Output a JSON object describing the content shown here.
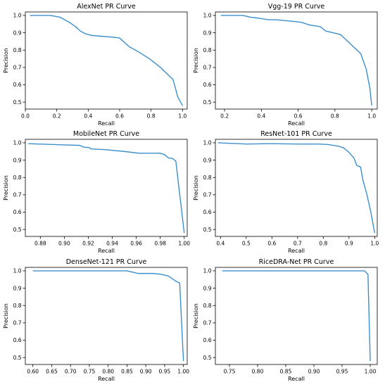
{
  "chart_data": [
    {
      "type": "line",
      "title": "AlexNet PR Curve",
      "xlabel": "Recall",
      "ylabel": "Precision",
      "xlim": [
        0.0,
        1.03
      ],
      "ylim": [
        0.46,
        1.02
      ],
      "xticks": [
        0.0,
        0.2,
        0.4,
        0.6,
        0.8,
        1.0
      ],
      "xtick_labels": [
        "0.0",
        "0.2",
        "0.4",
        "0.6",
        "0.8",
        "1.0"
      ],
      "yticks": [
        0.5,
        0.6,
        0.7,
        0.8,
        0.9,
        1.0
      ],
      "ytick_labels": [
        "0.5",
        "0.6",
        "0.7",
        "0.8",
        "0.9",
        "1.0"
      ],
      "grid": false,
      "color": "#3b8fcd",
      "x": [
        0.03,
        0.16,
        0.22,
        0.28,
        0.32,
        0.35,
        0.38,
        0.42,
        0.48,
        0.55,
        0.6,
        0.66,
        0.72,
        0.79,
        0.86,
        0.94,
        0.97,
        1.0
      ],
      "y": [
        1.0,
        1.0,
        0.99,
        0.96,
        0.935,
        0.91,
        0.895,
        0.885,
        0.88,
        0.875,
        0.87,
        0.82,
        0.79,
        0.75,
        0.7,
        0.63,
        0.53,
        0.48
      ]
    },
    {
      "type": "line",
      "title": "Vgg-19 PR Curve",
      "xlabel": "Recall",
      "ylabel": "Precision",
      "xlim": [
        0.15,
        1.03
      ],
      "ylim": [
        0.46,
        1.02
      ],
      "xticks": [
        0.2,
        0.4,
        0.6,
        0.8,
        1.0
      ],
      "xtick_labels": [
        "0.2",
        "0.4",
        "0.6",
        "0.8",
        "1.0"
      ],
      "yticks": [
        0.5,
        0.6,
        0.7,
        0.8,
        0.9,
        1.0
      ],
      "ytick_labels": [
        "0.5",
        "0.6",
        "0.7",
        "0.8",
        "0.9",
        "1.0"
      ],
      "grid": false,
      "color": "#3b8fcd",
      "x": [
        0.18,
        0.3,
        0.34,
        0.38,
        0.44,
        0.48,
        0.53,
        0.58,
        0.62,
        0.66,
        0.72,
        0.75,
        0.83,
        0.88,
        0.94,
        0.97,
        0.99,
        1.0
      ],
      "y": [
        1.0,
        1.0,
        0.99,
        0.985,
        0.975,
        0.975,
        0.97,
        0.965,
        0.96,
        0.945,
        0.935,
        0.91,
        0.89,
        0.84,
        0.78,
        0.69,
        0.58,
        0.48
      ]
    },
    {
      "type": "line",
      "title": "MobileNet PR Curve",
      "xlabel": "Recall",
      "ylabel": "Precision",
      "xlim": [
        0.8675,
        1.0025
      ],
      "ylim": [
        0.46,
        1.02
      ],
      "xticks": [
        0.88,
        0.9,
        0.92,
        0.94,
        0.96,
        0.98,
        1.0
      ],
      "xtick_labels": [
        "0.88",
        "0.90",
        "0.92",
        "0.94",
        "0.96",
        "0.98",
        "1.00"
      ],
      "yticks": [
        0.5,
        0.6,
        0.7,
        0.8,
        0.9,
        1.0
      ],
      "ytick_labels": [
        "0.5",
        "0.6",
        "0.7",
        "0.8",
        "0.9",
        "1.0"
      ],
      "grid": false,
      "color": "#3b8fcd",
      "x": [
        0.87,
        0.9,
        0.913,
        0.916,
        0.921,
        0.922,
        0.935,
        0.95,
        0.962,
        0.98,
        0.984,
        0.987,
        0.99,
        0.993,
        1.0
      ],
      "y": [
        0.995,
        0.988,
        0.985,
        0.975,
        0.972,
        0.965,
        0.96,
        0.95,
        0.94,
        0.94,
        0.93,
        0.912,
        0.91,
        0.895,
        0.48
      ]
    },
    {
      "type": "line",
      "title": "ResNet-101 PR Curve",
      "xlabel": "Recall",
      "ylabel": "Precision",
      "xlim": [
        0.38,
        1.01
      ],
      "ylim": [
        0.46,
        1.02
      ],
      "xticks": [
        0.4,
        0.5,
        0.6,
        0.7,
        0.8,
        0.9,
        1.0
      ],
      "xtick_labels": [
        "0.4",
        "0.5",
        "0.6",
        "0.7",
        "0.8",
        "0.9",
        "1.0"
      ],
      "yticks": [
        0.5,
        0.6,
        0.7,
        0.8,
        0.9,
        1.0
      ],
      "ytick_labels": [
        "0.5",
        "0.6",
        "0.7",
        "0.8",
        "0.9",
        "1.0"
      ],
      "grid": false,
      "color": "#3b8fcd",
      "x": [
        0.39,
        0.5,
        0.6,
        0.7,
        0.78,
        0.82,
        0.86,
        0.88,
        0.9,
        0.92,
        0.93,
        0.945,
        0.955,
        0.97,
        0.985,
        1.0
      ],
      "y": [
        1.0,
        0.993,
        0.995,
        0.993,
        0.993,
        0.99,
        0.98,
        0.97,
        0.945,
        0.91,
        0.87,
        0.86,
        0.78,
        0.7,
        0.6,
        0.48
      ]
    },
    {
      "type": "line",
      "title": "DenseNet-121 PR Curve",
      "xlabel": "Recall",
      "ylabel": "Precision",
      "xlim": [
        0.58,
        1.01
      ],
      "ylim": [
        0.46,
        1.02
      ],
      "xticks": [
        0.6,
        0.65,
        0.7,
        0.75,
        0.8,
        0.85,
        0.9,
        0.95,
        1.0
      ],
      "xtick_labels": [
        "0.60",
        "0.65",
        "0.70",
        "0.75",
        "0.80",
        "0.85",
        "0.90",
        "0.95",
        "1.00"
      ],
      "yticks": [
        0.5,
        0.6,
        0.7,
        0.8,
        0.9,
        1.0
      ],
      "ytick_labels": [
        "0.5",
        "0.6",
        "0.7",
        "0.8",
        "0.9",
        "1.0"
      ],
      "grid": false,
      "color": "#3b8fcd",
      "x": [
        0.6,
        0.7,
        0.8,
        0.85,
        0.87,
        0.88,
        0.9,
        0.92,
        0.94,
        0.96,
        0.97,
        0.98,
        0.99,
        1.0
      ],
      "y": [
        1.0,
        1.0,
        1.0,
        1.0,
        0.99,
        0.985,
        0.985,
        0.985,
        0.98,
        0.97,
        0.955,
        0.94,
        0.93,
        0.48
      ]
    },
    {
      "type": "line",
      "title": "RiceDRA-Net PR Curve",
      "xlabel": "Recall",
      "ylabel": "Precision",
      "xlim": [
        0.725,
        1.0125
      ],
      "ylim": [
        0.46,
        1.02
      ],
      "xticks": [
        0.75,
        0.8,
        0.85,
        0.9,
        0.95,
        1.0
      ],
      "xtick_labels": [
        "0.75",
        "0.80",
        "0.85",
        "0.90",
        "0.95",
        "1.00"
      ],
      "yticks": [
        0.5,
        0.6,
        0.7,
        0.8,
        0.9,
        1.0
      ],
      "ytick_labels": [
        "0.5",
        "0.6",
        "0.7",
        "0.8",
        "0.9",
        "1.0"
      ],
      "grid": false,
      "color": "#3b8fcd",
      "x": [
        0.737,
        0.8,
        0.9,
        0.99,
        0.996,
        1.0
      ],
      "y": [
        1.0,
        1.0,
        1.0,
        1.0,
        0.98,
        0.48
      ]
    }
  ]
}
